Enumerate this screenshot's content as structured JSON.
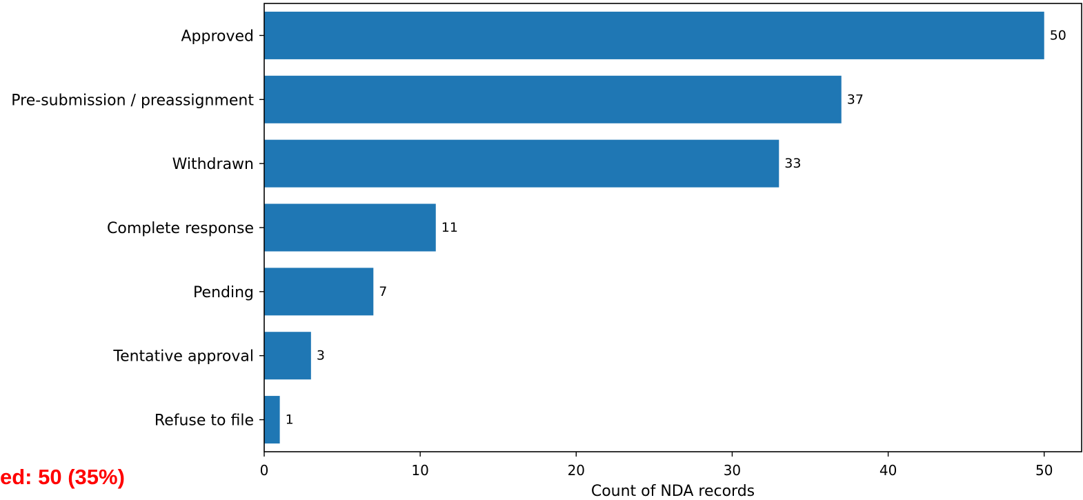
{
  "chart_data": {
    "type": "bar",
    "orientation": "horizontal",
    "categories": [
      "Approved",
      "Pre-submission / preassignment",
      "Withdrawn",
      "Complete response",
      "Pending",
      "Tentative approval",
      "Refuse to file"
    ],
    "values": [
      50,
      37,
      33,
      11,
      7,
      3,
      1
    ],
    "value_labels": [
      "50",
      "37",
      "33",
      "11",
      "7",
      "3",
      "1"
    ],
    "xlabel": "Count of NDA records",
    "ylabel": "",
    "xlim": [
      0,
      52.4
    ],
    "xticks": [
      0,
      10,
      20,
      30,
      40,
      50
    ],
    "xtick_labels": [
      "0",
      "10",
      "20",
      "30",
      "40",
      "50"
    ],
    "grid": false,
    "bar_color": "#1f77b4",
    "annotation": {
      "text": "ed: 50 (35%)",
      "color": "#ff0000"
    }
  }
}
